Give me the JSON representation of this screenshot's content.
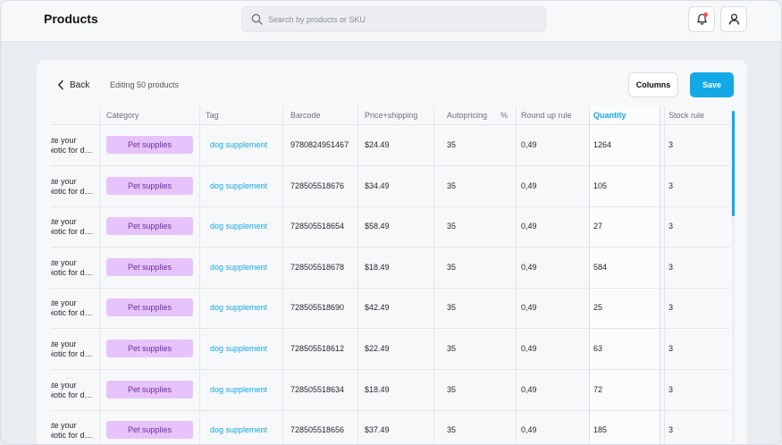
{
  "header": {
    "title": "Products",
    "search_placeholder": "Search by products or SKU"
  },
  "toolbar": {
    "back_label": "Back",
    "editing_label": "Editing 50 products",
    "columns_label": "Columns",
    "save_label": "Save"
  },
  "table": {
    "columns": [
      "Category",
      "Tag",
      "Barcode",
      "Price+shipping",
      "Autopricing",
      "%",
      "Round up rule",
      "Quantity",
      "Stock rule"
    ],
    "rows": [
      {
        "title_line1": "ate your",
        "title_line2": "biotic for d…",
        "category": "Pet supplies",
        "tag": "dog supplement",
        "barcode": "9780824951467",
        "price": "$24.49",
        "autopricing": "35",
        "round_up": "0,49",
        "quantity": "1264",
        "stock_rule": "3"
      },
      {
        "title_line1": "ate your",
        "title_line2": "biotic for d…",
        "category": "Pet supplies",
        "tag": "dog supplement",
        "barcode": "728505518676",
        "price": "$34.49",
        "autopricing": "35",
        "round_up": "0,49",
        "quantity": "105",
        "stock_rule": "3"
      },
      {
        "title_line1": "ate your",
        "title_line2": "biotic for d…",
        "category": "Pet supplies",
        "tag": "dog supplement",
        "barcode": "728505518654",
        "price": "$58.49",
        "autopricing": "35",
        "round_up": "0,49",
        "quantity": "27",
        "stock_rule": "3"
      },
      {
        "title_line1": "ate your",
        "title_line2": "biotic for d…",
        "category": "Pet supplies",
        "tag": "dog supplement",
        "barcode": "728505518678",
        "price": "$18.49",
        "autopricing": "35",
        "round_up": "0,49",
        "quantity": "584",
        "stock_rule": "3"
      },
      {
        "title_line1": "ate your",
        "title_line2": "biotic for d…",
        "category": "Pet supplies",
        "tag": "dog supplement",
        "barcode": "728505518690",
        "price": "$42.49",
        "autopricing": "35",
        "round_up": "0,49",
        "quantity": "25",
        "stock_rule": "3"
      },
      {
        "title_line1": "ate your",
        "title_line2": "biotic for d…",
        "category": "Pet supplies",
        "tag": "dog supplement",
        "barcode": "728505518612",
        "price": "$22.49",
        "autopricing": "35",
        "round_up": "0,49",
        "quantity": "63",
        "stock_rule": "3"
      },
      {
        "title_line1": "ate your",
        "title_line2": "biotic for d…",
        "category": "Pet supplies",
        "tag": "dog supplement",
        "barcode": "728505518634",
        "price": "$18.49",
        "autopricing": "35",
        "round_up": "0,49",
        "quantity": "72",
        "stock_rule": "3"
      },
      {
        "title_line1": "ate your",
        "title_line2": "biotic for d…",
        "category": "Pet supplies",
        "tag": "dog supplement",
        "barcode": "728505518656",
        "price": "$37.49",
        "autopricing": "35",
        "round_up": "0,49",
        "quantity": "185",
        "stock_rule": "3"
      }
    ]
  },
  "colors": {
    "accent": "#12a9e6",
    "pill_bg": "#e7c3fb",
    "pill_text": "#6b2aa8"
  },
  "icons": {
    "search": "search-icon",
    "bell": "bell-icon",
    "user": "user-icon",
    "back": "chevron-left-icon"
  }
}
